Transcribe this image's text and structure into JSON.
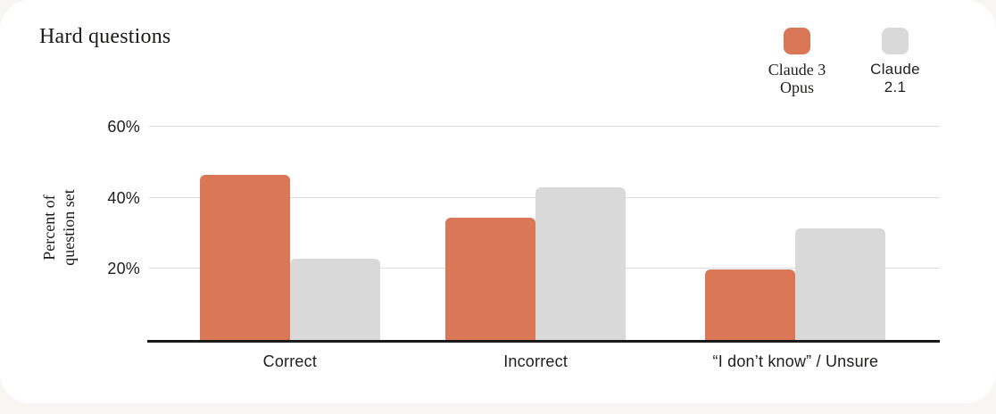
{
  "page": {
    "background_color": "#f7f6f2",
    "card_background_color": "#ffffff"
  },
  "chart_data": {
    "type": "bar",
    "title": "Hard questions",
    "ylabel": "Percent of question set",
    "ylabel_lines": [
      "Percent of",
      "question set"
    ],
    "xlabel": "",
    "categories": [
      "Correct",
      "Incorrect",
      "“I don’t know” / Unsure"
    ],
    "series": [
      {
        "name": "Claude 3 Opus",
        "color": "#D97757",
        "values": [
          46,
          34,
          19.5
        ]
      },
      {
        "name": "Claude 2.1",
        "color": "#D9D9D9",
        "values": [
          22.5,
          42.5,
          31
        ]
      }
    ],
    "yticks": [
      {
        "value": 20,
        "label": "20%"
      },
      {
        "value": 40,
        "label": "40%"
      },
      {
        "value": 60,
        "label": "60%"
      }
    ],
    "ylim": [
      0,
      60
    ],
    "grid": true,
    "legend_position": "top-right",
    "legend": [
      {
        "lines": [
          "Claude 3",
          "Opus"
        ],
        "color": "#D97757"
      },
      {
        "lines": [
          "Claude",
          "2.1"
        ],
        "color": "#D9D9D9"
      }
    ],
    "colors": {
      "axis": "#191919",
      "gridline": "#dcdcda",
      "text": "#1f1e1d"
    }
  }
}
